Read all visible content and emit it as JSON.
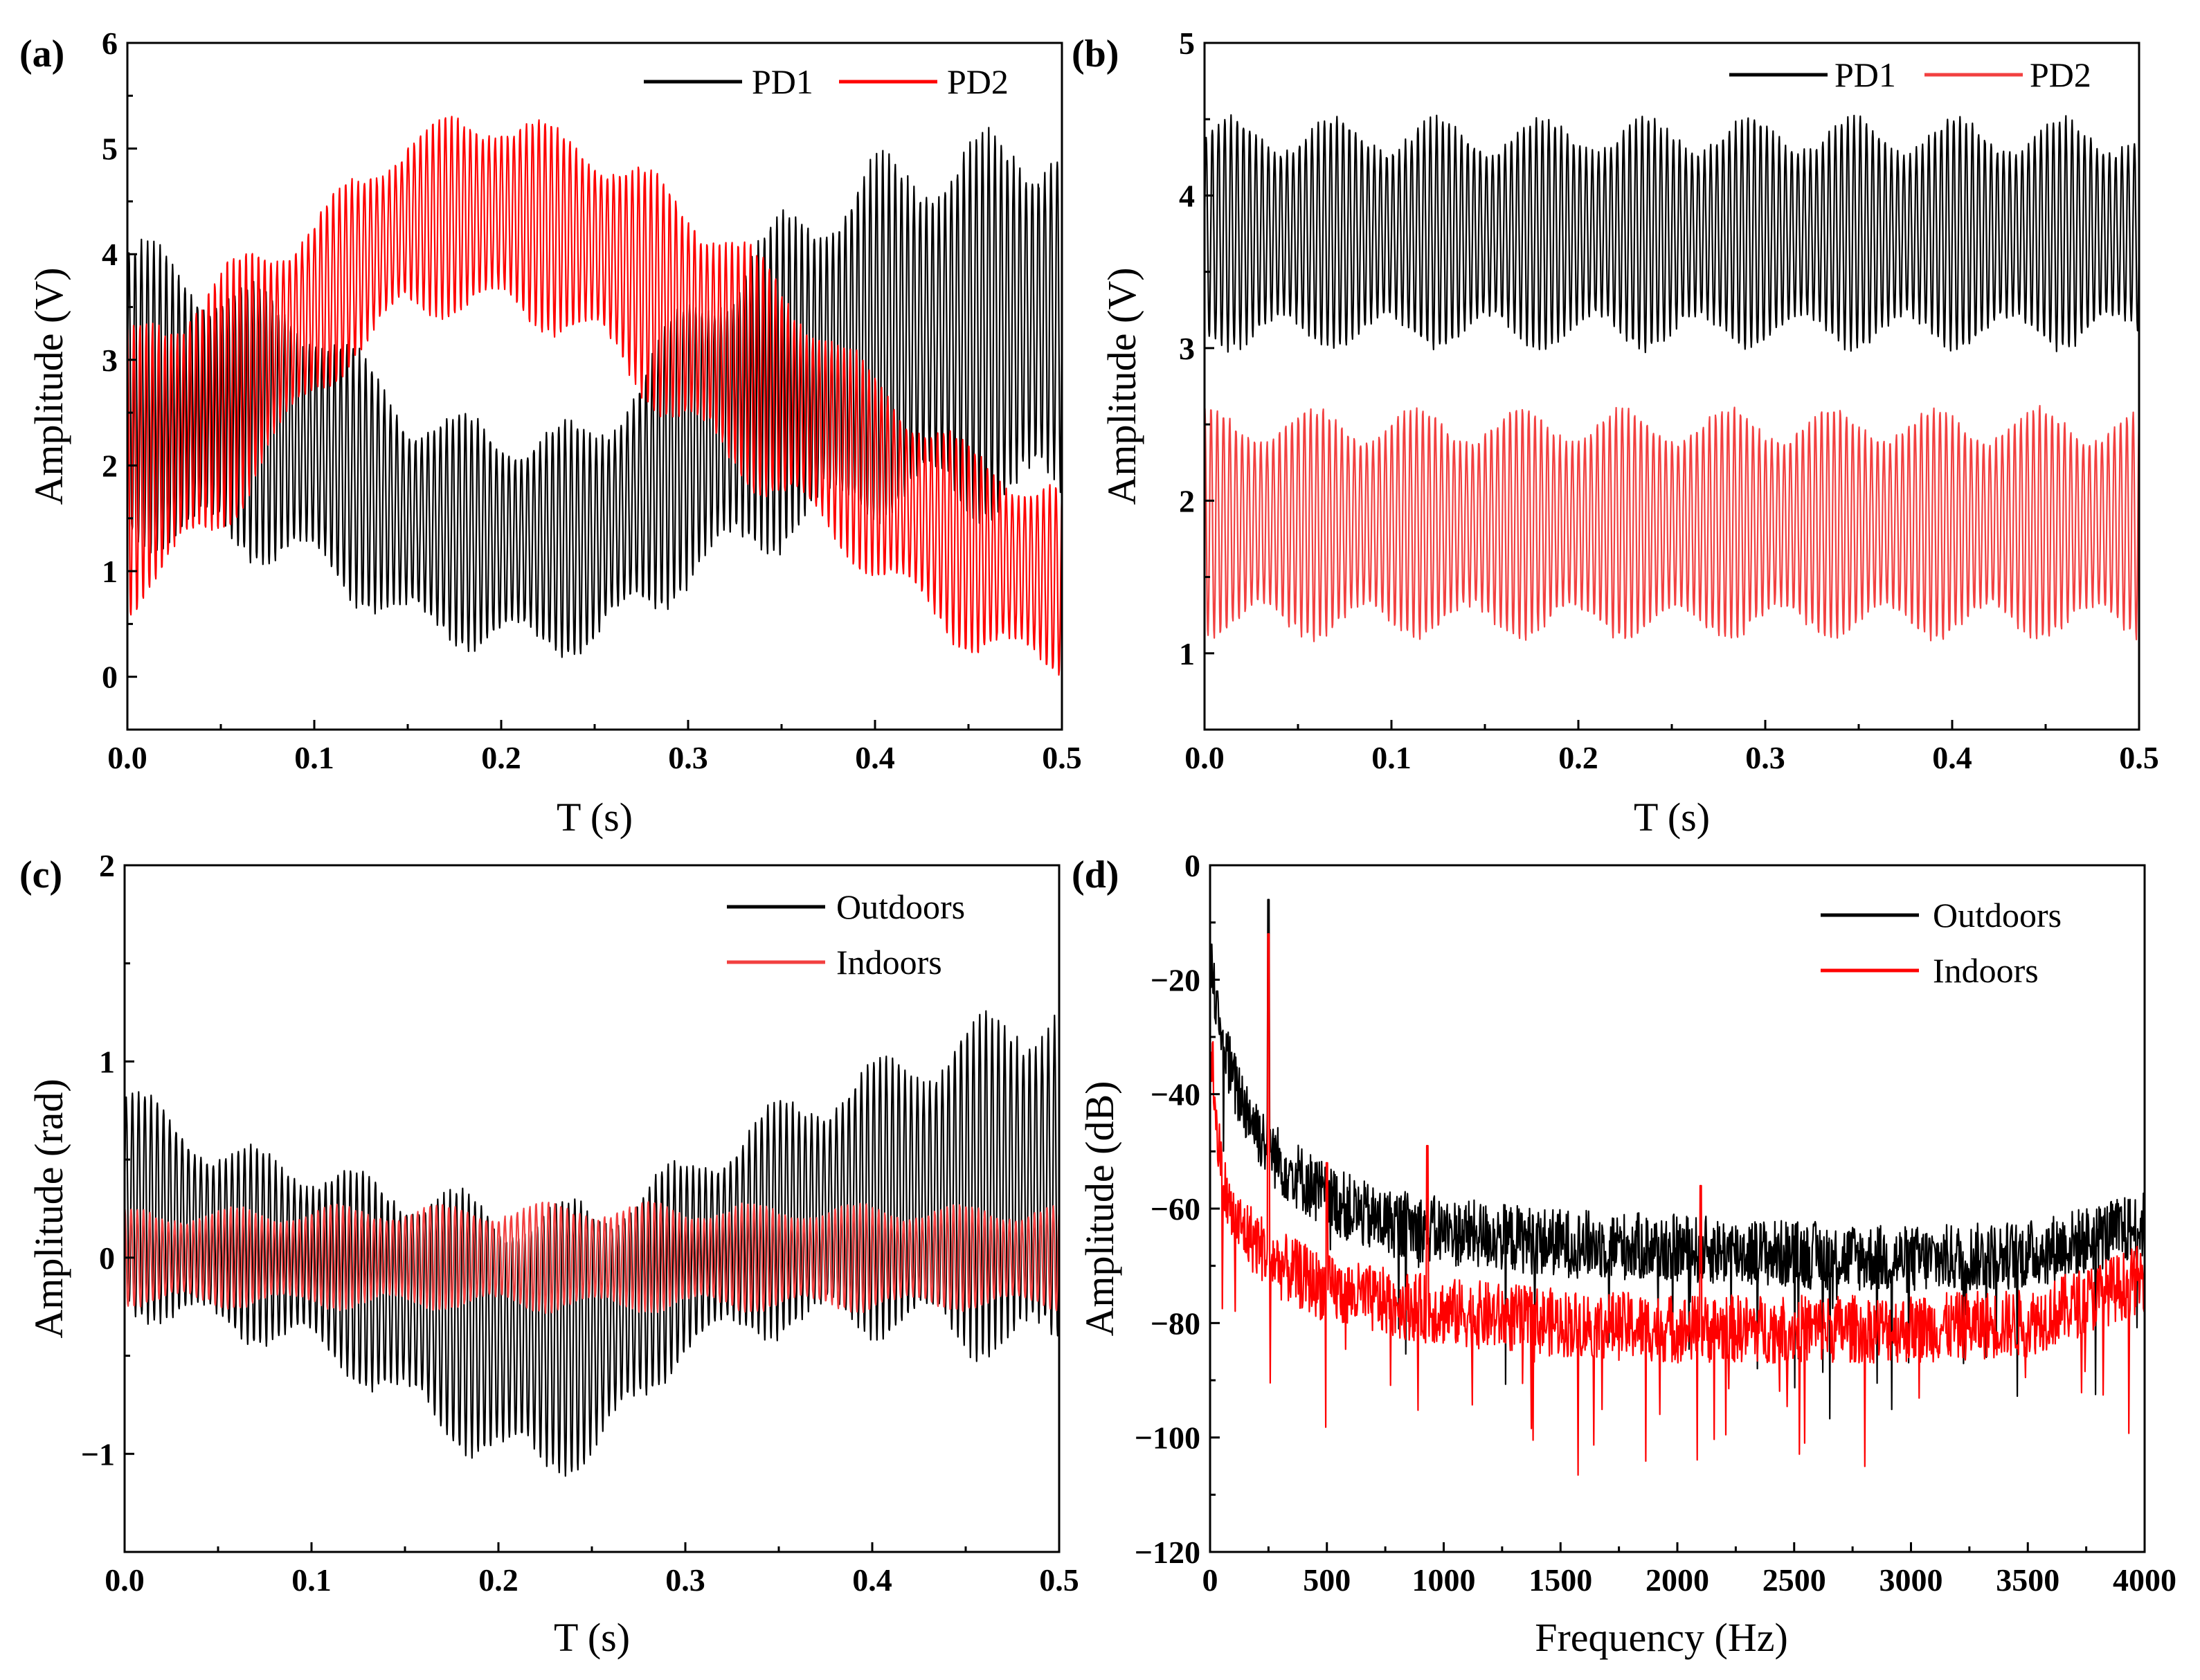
{
  "colors": {
    "pd1": "#000000",
    "pd2": "#ff0000",
    "outdoors": "#000000",
    "indoors_c": "#f24040",
    "indoors_d": "#ff0000",
    "pd2_b": "#f24040"
  },
  "chart_data": [
    {
      "id": "a",
      "type": "line",
      "panel_label": "(a)",
      "xlabel": "T (s)",
      "ylabel": "Amplitude (V)",
      "xlim": [
        0,
        0.5
      ],
      "ylim": [
        -0.5,
        6
      ],
      "xticks": [
        0.0,
        0.1,
        0.2,
        0.3,
        0.4,
        0.5
      ],
      "xtick_labels": [
        "0.0",
        "0.1",
        "0.2",
        "0.3",
        "0.4",
        "0.5"
      ],
      "yticks": [
        0,
        1,
        2,
        3,
        4,
        5,
        6
      ],
      "ytick_labels": [
        "0",
        "1",
        "2",
        "3",
        "4",
        "5",
        "6"
      ],
      "legend": [
        "PD1",
        "PD2"
      ],
      "legend_position": "top-right",
      "series": [
        {
          "name": "PD1",
          "color_key": "pd1",
          "signal_freq_hz": 300,
          "center": {
            "t": [
              0,
              0.05,
              0.1,
              0.15,
              0.2,
              0.25,
              0.3,
              0.35,
              0.4,
              0.45,
              0.5
            ],
            "v": [
              2.7,
              2.5,
              2.2,
              1.5,
              1.3,
              1.3,
              2.2,
              2.8,
              3.2,
              3.3,
              3.4
            ]
          },
          "amplitude": {
            "t": [
              0,
              0.05,
              0.1,
              0.15,
              0.2,
              0.25,
              0.3,
              0.35,
              0.4,
              0.45,
              0.5
            ],
            "v": [
              1.5,
              1.3,
              1.3,
              1.1,
              1.1,
              1.1,
              1.4,
              1.6,
              1.7,
              1.8,
              1.9
            ]
          }
        },
        {
          "name": "PD2",
          "color_key": "pd2",
          "signal_freq_hz": 300,
          "center": {
            "t": [
              0,
              0.05,
              0.1,
              0.15,
              0.2,
              0.25,
              0.3,
              0.35,
              0.4,
              0.45,
              0.5
            ],
            "v": [
              1.9,
              2.6,
              3.5,
              4.3,
              4.4,
              4.1,
              3.4,
              2.7,
              1.9,
              1.2,
              0.9
            ]
          },
          "amplitude": {
            "t": [
              0,
              0.05,
              0.1,
              0.15,
              0.2,
              0.25,
              0.3,
              0.35,
              0.4,
              0.45,
              0.5
            ],
            "v": [
              1.4,
              1.3,
              0.9,
              0.9,
              1.0,
              1.0,
              1.2,
              1.1,
              1.0,
              1.0,
              0.9
            ]
          }
        }
      ]
    },
    {
      "id": "b",
      "type": "line",
      "panel_label": "(b)",
      "xlabel": "T (s)",
      "ylabel": "Amplitude (V)",
      "xlim": [
        0,
        0.5
      ],
      "ylim": [
        0.5,
        5
      ],
      "xticks": [
        0.0,
        0.1,
        0.2,
        0.3,
        0.4,
        0.5
      ],
      "xtick_labels": [
        "0.0",
        "0.1",
        "0.2",
        "0.3",
        "0.4",
        "0.5"
      ],
      "yticks": [
        1,
        2,
        3,
        4,
        5
      ],
      "ytick_labels": [
        "1",
        "2",
        "3",
        "4",
        "5"
      ],
      "legend": [
        "PD1",
        "PD2"
      ],
      "legend_position": "top-right",
      "series": [
        {
          "name": "PD1",
          "color_key": "pd1",
          "signal_freq_hz": 300,
          "center": {
            "t": [
              0,
              0.25,
              0.5
            ],
            "v": [
              3.75,
              3.75,
              3.75
            ]
          },
          "amplitude": {
            "t": [
              0,
              0.25,
              0.5
            ],
            "v": [
              0.75,
              0.75,
              0.75
            ]
          }
        },
        {
          "name": "PD2",
          "color_key": "pd2_b",
          "signal_freq_hz": 300,
          "center": {
            "t": [
              0,
              0.25,
              0.5
            ],
            "v": [
              1.85,
              1.85,
              1.85
            ]
          },
          "amplitude": {
            "t": [
              0,
              0.25,
              0.5
            ],
            "v": [
              0.75,
              0.75,
              0.75
            ]
          }
        }
      ]
    },
    {
      "id": "c",
      "type": "line",
      "panel_label": "(c)",
      "xlabel": "T (s)",
      "ylabel": "Amplitude (rad)",
      "xlim": [
        0,
        0.5
      ],
      "ylim": [
        -1.5,
        2
      ],
      "xticks": [
        0.0,
        0.1,
        0.2,
        0.3,
        0.4,
        0.5
      ],
      "xtick_labels": [
        "0.0",
        "0.1",
        "0.2",
        "0.3",
        "0.4",
        "0.5"
      ],
      "yticks": [
        -1,
        0,
        1,
        2
      ],
      "ytick_labels": [
        "-1",
        "0",
        "1",
        "2"
      ],
      "legend": [
        "Outdoors",
        "Indoors"
      ],
      "legend_position": "top-right",
      "series": [
        {
          "name": "Outdoors",
          "color_key": "outdoors",
          "signal_freq_hz": 300,
          "center": {
            "t": [
              0,
              0.05,
              0.1,
              0.15,
              0.2,
              0.25,
              0.3,
              0.35,
              0.4,
              0.45,
              0.5
            ],
            "v": [
              0.3,
              0.1,
              0.0,
              -0.2,
              -0.4,
              -0.4,
              0.0,
              0.2,
              0.3,
              0.35,
              0.4
            ]
          },
          "amplitude": {
            "t": [
              0,
              0.05,
              0.1,
              0.15,
              0.2,
              0.25,
              0.3,
              0.35,
              0.4,
              0.45,
              0.5
            ],
            "v": [
              0.6,
              0.5,
              0.5,
              0.6,
              0.7,
              0.7,
              0.5,
              0.6,
              0.7,
              0.85,
              1.0
            ]
          }
        },
        {
          "name": "Indoors",
          "color_key": "indoors_c",
          "signal_freq_hz": 300,
          "center": {
            "t": [
              0,
              0.25,
              0.5
            ],
            "v": [
              0.0,
              0.0,
              0.0
            ]
          },
          "amplitude": {
            "t": [
              0,
              0.25,
              0.5
            ],
            "v": [
              0.25,
              0.28,
              0.27
            ]
          }
        }
      ]
    },
    {
      "id": "d",
      "type": "line",
      "panel_label": "(d)",
      "xlabel": "Frequency (Hz)",
      "ylabel": "Amplitude (dB)",
      "xlim": [
        0,
        4000
      ],
      "ylim": [
        -120,
        0
      ],
      "xticks": [
        0,
        500,
        1000,
        1500,
        2000,
        2500,
        3000,
        3500,
        4000
      ],
      "xtick_labels": [
        "0",
        "500",
        "1000",
        "1500",
        "2000",
        "2500",
        "3000",
        "3500",
        "4000"
      ],
      "yticks": [
        -120,
        -100,
        -80,
        -60,
        -40,
        -20,
        0
      ],
      "ytick_labels": [
        "-120",
        "-100",
        "-80",
        "-60",
        "-40",
        "-20",
        "0"
      ],
      "legend": [
        "Outdoors",
        "Indoors"
      ],
      "legend_position": "top-right",
      "series": [
        {
          "name": "Outdoors",
          "color_key": "outdoors",
          "baseline": {
            "f": [
              0,
              50,
              100,
              200,
              300,
              500,
              700,
              1000,
              1500,
              2000,
              2500,
              3000,
              3500,
              4000
            ],
            "db": [
              -15,
              -30,
              -38,
              -46,
              -52,
              -58,
              -62,
              -64,
              -66,
              -67,
              -68,
              -69,
              -68,
              -63
            ]
          },
          "peaks": [
            {
              "f": 250,
              "db": -6
            },
            {
              "f": 30,
              "db": -22
            }
          ]
        },
        {
          "name": "Indoors",
          "color_key": "indoors_d",
          "baseline": {
            "f": [
              0,
              50,
              100,
              200,
              300,
              500,
              700,
              1000,
              1500,
              2000,
              2500,
              3000,
              3500,
              4000
            ],
            "db": [
              -30,
              -55,
              -62,
              -66,
              -70,
              -74,
              -76,
              -78,
              -80,
              -81,
              -81,
              -81,
              -80,
              -72
            ]
          },
          "peaks": [
            {
              "f": 250,
              "db": -12
            },
            {
              "f": 930,
              "db": -49
            },
            {
              "f": 2100,
              "db": -56
            },
            {
              "f": 500,
              "db": -52
            }
          ]
        }
      ]
    }
  ]
}
